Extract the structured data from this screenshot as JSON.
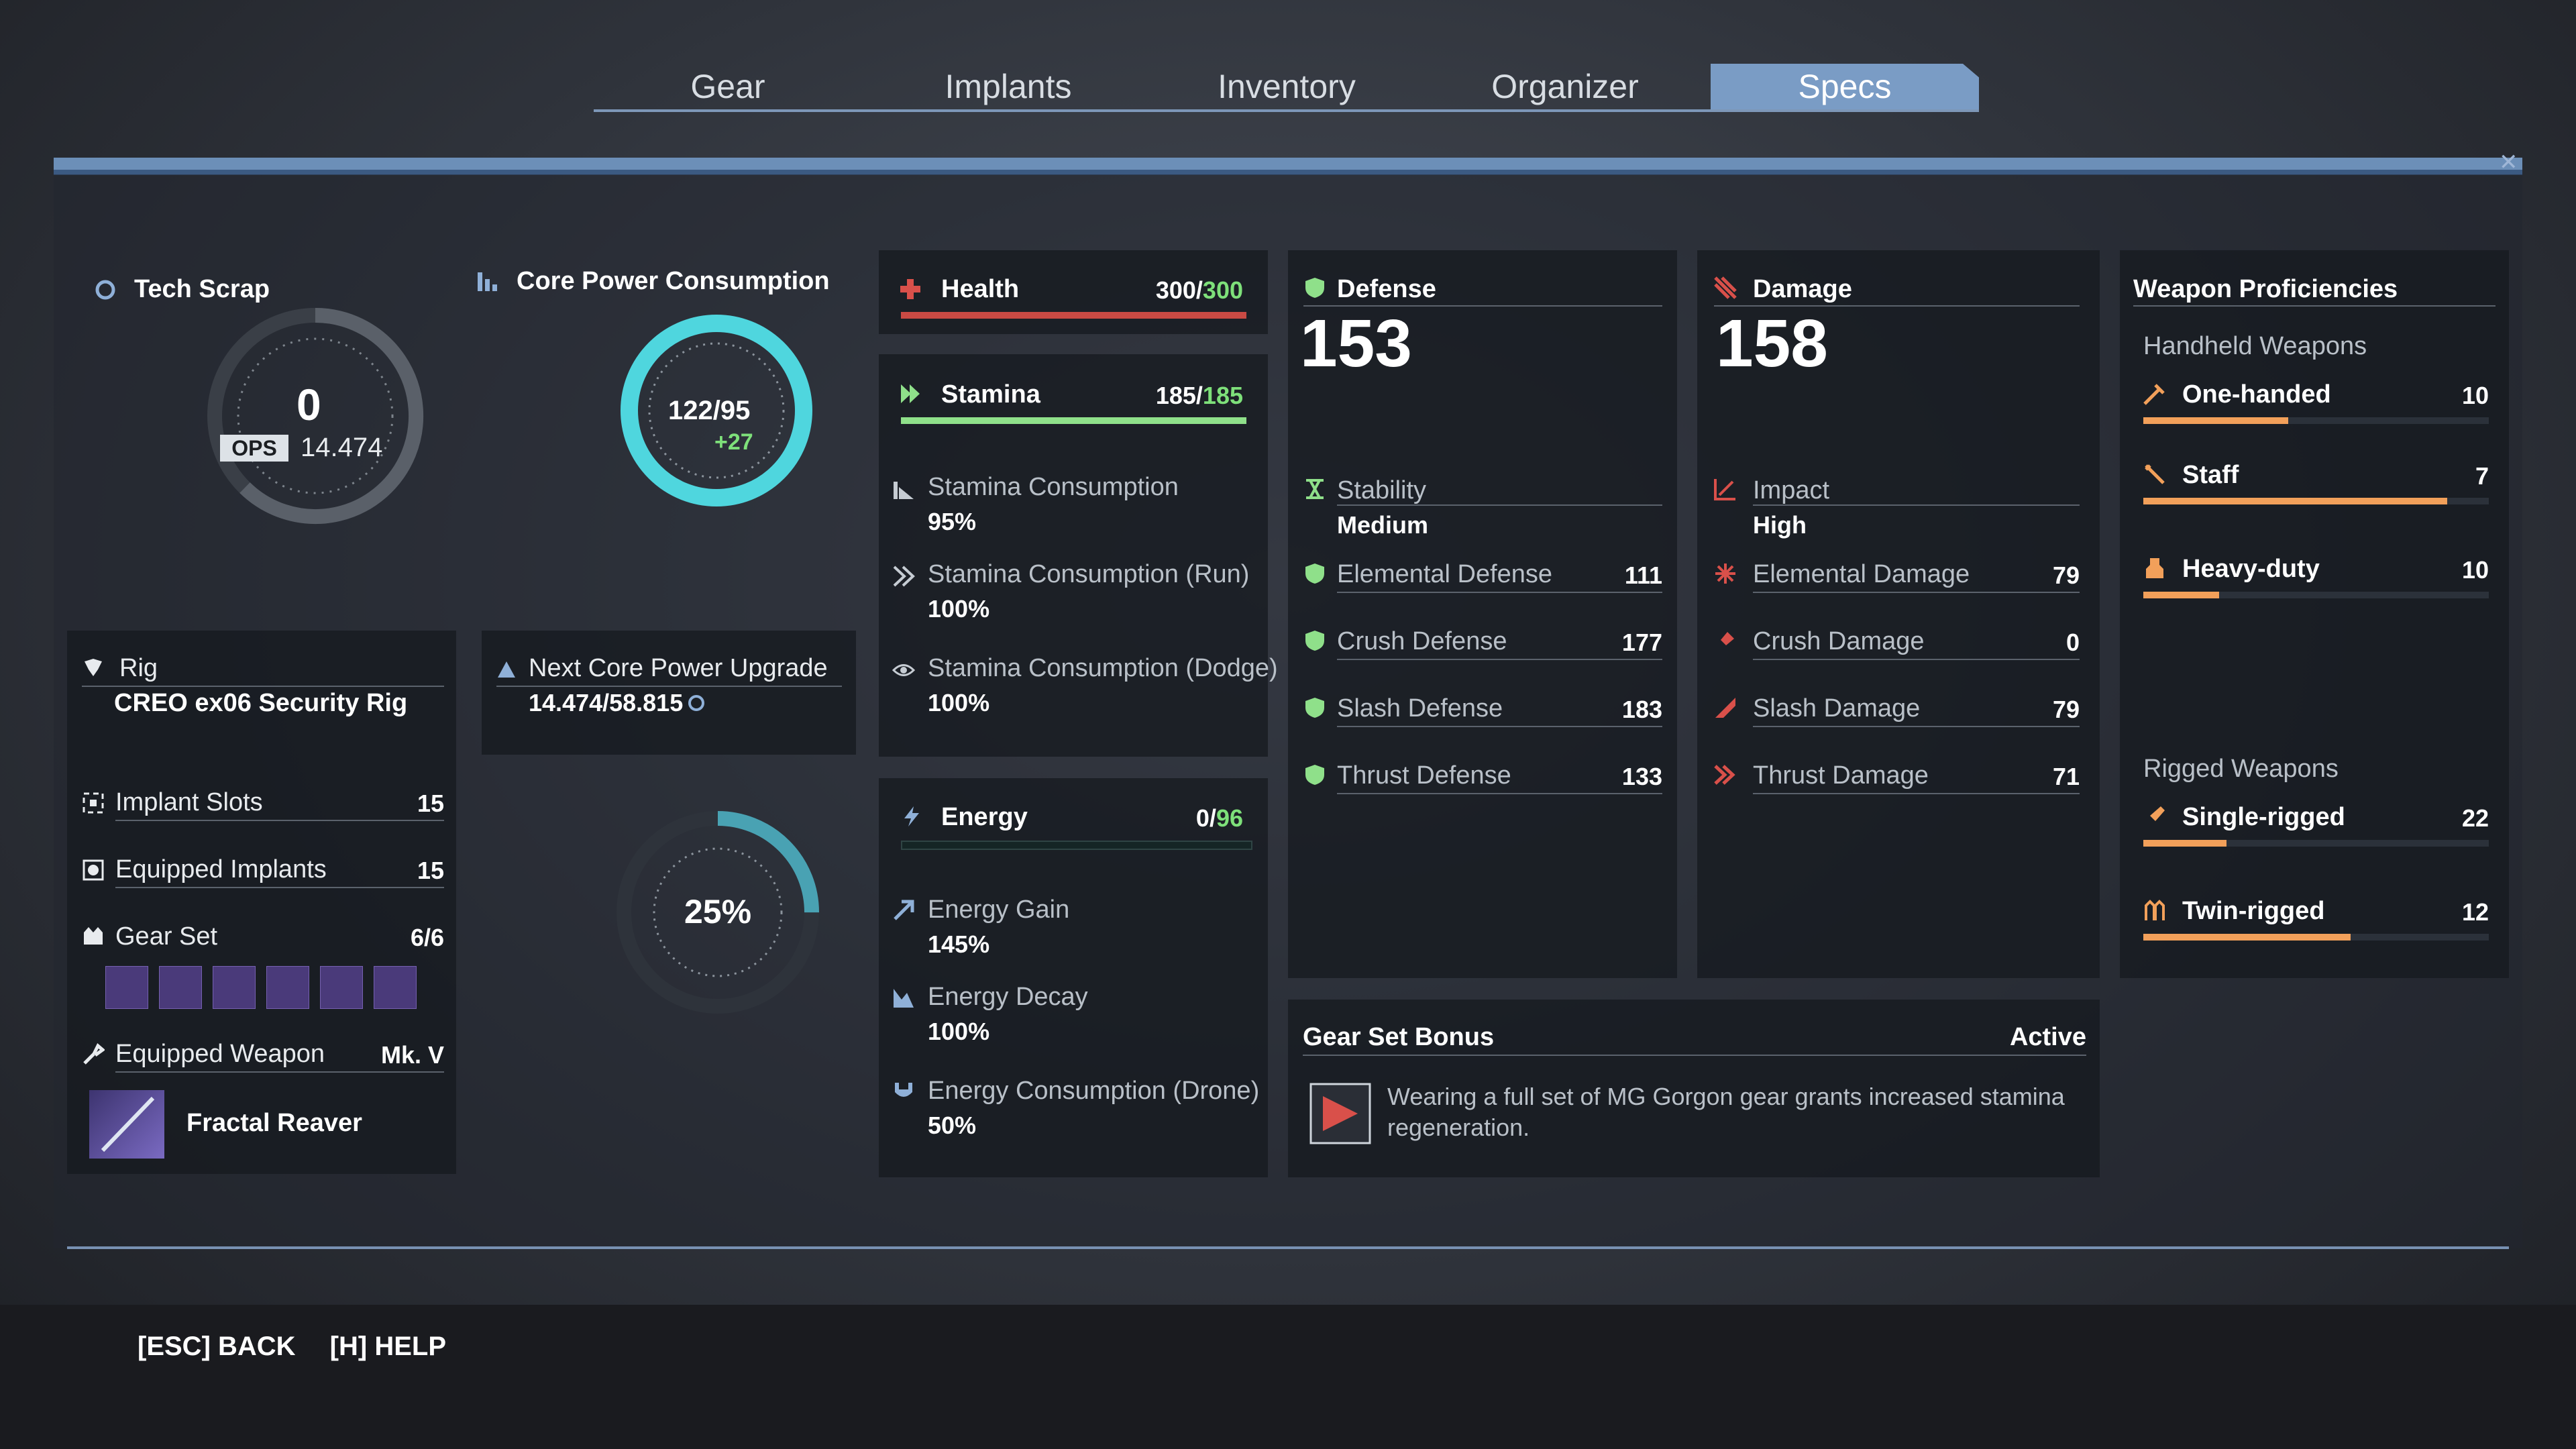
{
  "tabs": [
    {
      "label": "Gear",
      "active": false
    },
    {
      "label": "Implants",
      "active": false
    },
    {
      "label": "Inventory",
      "active": false
    },
    {
      "label": "Organizer",
      "active": false
    },
    {
      "label": "Specs",
      "active": true
    }
  ],
  "tech_scrap": {
    "title": "Tech Scrap",
    "value": "0",
    "ops_badge": "OPS",
    "ops_value": "14.474"
  },
  "core_power": {
    "title": "Core Power Consumption",
    "current": "122/95",
    "bonus": "+27",
    "ring_fraction": 1.0
  },
  "next_upgrade": {
    "title": "Next Core Power Upgrade",
    "value": "14.474/58.815"
  },
  "progress_dial": {
    "percent": "25%",
    "fraction": 0.25
  },
  "rig": {
    "title": "Rig",
    "name": "CREO ex06 Security Rig"
  },
  "loadout": {
    "implant_slots": {
      "label": "Implant Slots",
      "value": "15"
    },
    "equipped_implants": {
      "label": "Equipped Implants",
      "value": "15"
    },
    "gear_set": {
      "label": "Gear Set",
      "value": "6/6",
      "tiles": 6
    },
    "equipped_weapon": {
      "label": "Equipped Weapon",
      "tier": "Mk. V",
      "name": "Fractal Reaver"
    }
  },
  "health": {
    "label": "Health",
    "current": "300",
    "max": "300",
    "fraction": 1.0,
    "color": "#c94a44"
  },
  "stamina": {
    "label": "Stamina",
    "current": "185",
    "max": "185",
    "fraction": 1.0,
    "color": "#8fe08a",
    "stats": [
      {
        "label": "Stamina Consumption",
        "value": "95%"
      },
      {
        "label": "Stamina Consumption (Run)",
        "value": "100%"
      },
      {
        "label": "Stamina Consumption (Dodge)",
        "value": "100%"
      }
    ]
  },
  "energy": {
    "label": "Energy",
    "current": "0",
    "max": "96",
    "fraction": 0.0,
    "stats": [
      {
        "label": "Energy Gain",
        "value": "145%"
      },
      {
        "label": "Energy Decay",
        "value": "100%"
      },
      {
        "label": "Energy Consumption (Drone)",
        "value": "50%"
      }
    ]
  },
  "defense": {
    "label": "Defense",
    "total": "153",
    "stability_label": "Stability",
    "stability_value": "Medium",
    "stats": [
      {
        "label": "Elemental Defense",
        "value": "111"
      },
      {
        "label": "Crush Defense",
        "value": "177"
      },
      {
        "label": "Slash Defense",
        "value": "183"
      },
      {
        "label": "Thrust Defense",
        "value": "133"
      }
    ]
  },
  "damage": {
    "label": "Damage",
    "total": "158",
    "impact_label": "Impact",
    "impact_value": "High",
    "stats": [
      {
        "label": "Elemental Damage",
        "value": "79"
      },
      {
        "label": "Crush Damage",
        "value": "0"
      },
      {
        "label": "Slash Damage",
        "value": "79"
      },
      {
        "label": "Thrust Damage",
        "value": "71"
      }
    ]
  },
  "gear_set_bonus": {
    "title": "Gear Set Bonus",
    "status": "Active",
    "text": "Wearing a full set of MG Gorgon gear grants increased stamina regeneration."
  },
  "proficiencies": {
    "title": "Weapon Proficiencies",
    "handheld_label": "Handheld Weapons",
    "handheld": [
      {
        "label": "One-handed",
        "value": "10",
        "fraction": 0.42
      },
      {
        "label": "Staff",
        "value": "7",
        "fraction": 0.88
      },
      {
        "label": "Heavy-duty",
        "value": "10",
        "fraction": 0.22
      }
    ],
    "rigged_label": "Rigged Weapons",
    "rigged": [
      {
        "label": "Single-rigged",
        "value": "22",
        "fraction": 0.24
      },
      {
        "label": "Twin-rigged",
        "value": "12",
        "fraction": 0.6
      }
    ]
  },
  "footer": {
    "back": "[ESC] BACK",
    "help": "[H] HELP"
  }
}
